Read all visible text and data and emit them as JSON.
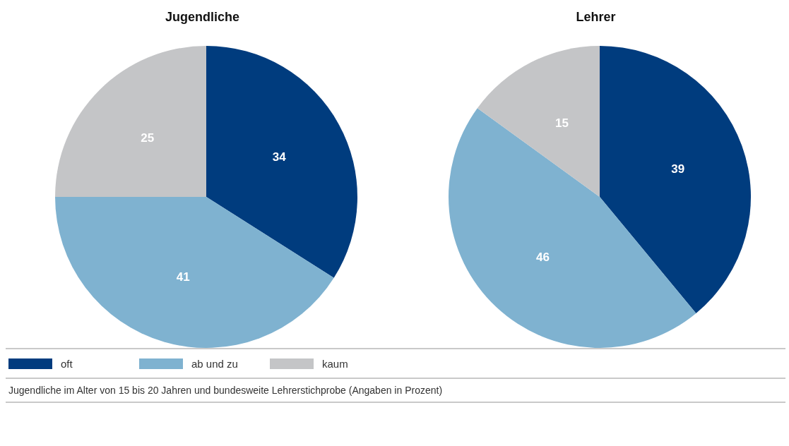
{
  "chart_data": {
    "type": "pie",
    "categories": [
      "oft",
      "ab und zu",
      "kaum"
    ],
    "colors": [
      "#003c7e",
      "#7fb2d0",
      "#c4c5c7"
    ],
    "data_labels": true,
    "legend": "bottom",
    "series": [
      {
        "name": "Jugendliche",
        "values": [
          34,
          41,
          25
        ]
      },
      {
        "name": "Lehrer",
        "values": [
          39,
          46,
          15
        ]
      }
    ],
    "annotations": [
      "Jugendliche im Alter von 15 bis 20 Jahren und bundesweite Lehrerstichprobe (Angaben in Prozent)"
    ]
  }
}
